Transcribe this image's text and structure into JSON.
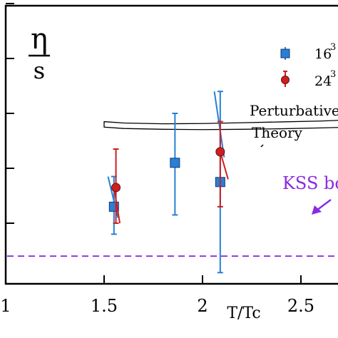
{
  "chart_data": {
    "type": "scatter",
    "xlabel": "T/Tc",
    "ylabel_num": "η",
    "ylabel_den": "s",
    "xlim": [
      1.0,
      2.7
    ],
    "xticks": [
      {
        "value": 1.0,
        "label": "1"
      },
      {
        "value": 1.5,
        "label": "1.5"
      },
      {
        "value": 2.0,
        "label": "2"
      },
      {
        "value": 2.5,
        "label": "2.5"
      }
    ],
    "ylim": [
      0,
      1.0
    ],
    "yticks": [
      0.2,
      0.4,
      0.6,
      0.8,
      1.0
    ],
    "y_tick_labels_visible": false,
    "series": [
      {
        "name": "16",
        "superscript": "3",
        "marker": "square",
        "color": "#2a7fd4",
        "points": [
          {
            "x": 1.55,
            "y": 0.26,
            "yerr_low": 0.16,
            "yerr_high": 0.37,
            "slope_low": [
              1.52,
              0.37
            ],
            "slope_high": [
              1.57,
              0.22
            ]
          },
          {
            "x": 1.86,
            "y": 0.42,
            "yerr_low": 0.23,
            "yerr_high": 0.6
          },
          {
            "x": 2.09,
            "y": 0.35,
            "yerr_low": 0.02,
            "yerr_high": 0.68,
            "slope_low": [
              2.06,
              0.68
            ],
            "slope_high": [
              2.11,
              0.44
            ]
          }
        ]
      },
      {
        "name": "24",
        "superscript": "3",
        "marker": "circle",
        "color": "#cc1f1f",
        "points": [
          {
            "x": 1.56,
            "y": 0.33,
            "yerr_low": 0.2,
            "yerr_high": 0.47,
            "slope_low": [
              1.55,
              0.33
            ],
            "slope_high": [
              1.58,
              0.2
            ]
          },
          {
            "x": 2.09,
            "y": 0.46,
            "yerr_low": 0.26,
            "yerr_high": 0.57,
            "slope_low": [
              2.09,
              0.46
            ],
            "slope_high": [
              2.13,
              0.36
            ]
          }
        ]
      }
    ],
    "kss_bound": {
      "y": 0.08,
      "label": "KSS bo",
      "color": "#8a2be2"
    },
    "perturbative_band": {
      "label_line1": "Perturbative",
      "label_line2": "Theory",
      "x": [
        1.5,
        1.6,
        1.8,
        2.0,
        2.2,
        2.4,
        2.6,
        2.7
      ],
      "upper": [
        0.57,
        0.565,
        0.562,
        0.563,
        0.566,
        0.569,
        0.572,
        0.575
      ],
      "lower": [
        0.55,
        0.545,
        0.542,
        0.541,
        0.542,
        0.544,
        0.547,
        0.549
      ]
    },
    "legend_position": "top-right"
  }
}
